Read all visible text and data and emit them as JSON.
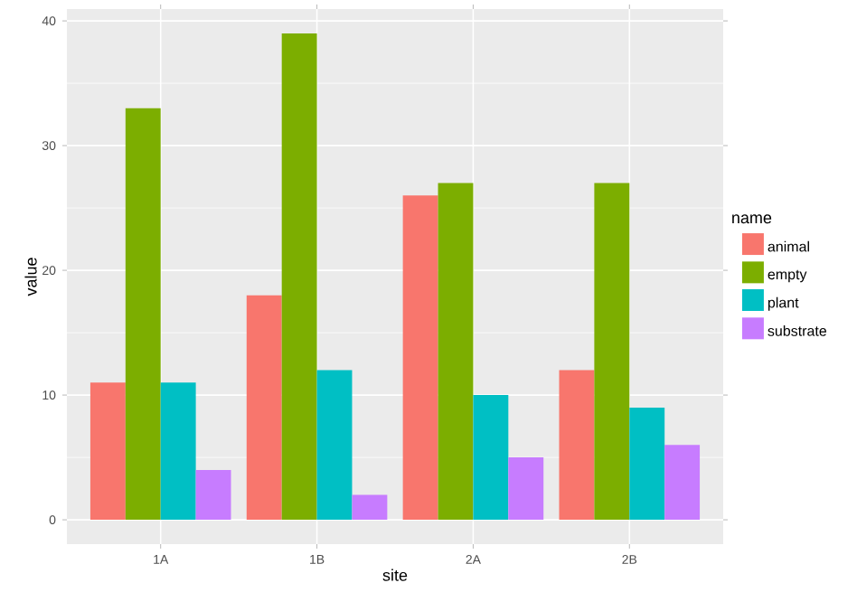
{
  "chart_data": {
    "type": "bar",
    "xlabel": "site",
    "ylabel": "value",
    "legend_title": "name",
    "categories": [
      "1A",
      "1B",
      "2A",
      "2B"
    ],
    "series": [
      {
        "name": "animal",
        "color": "#f8766d",
        "values": [
          11,
          18,
          26,
          12
        ]
      },
      {
        "name": "empty",
        "color": "#7cae00",
        "values": [
          33,
          39,
          27,
          27
        ]
      },
      {
        "name": "plant",
        "color": "#00bfc4",
        "values": [
          11,
          12,
          10,
          9
        ]
      },
      {
        "name": "substrate",
        "color": "#c77cff",
        "values": [
          4,
          2,
          5,
          6
        ]
      }
    ],
    "ylim": [
      -1.95,
      40.95
    ],
    "yticks": [
      0,
      10,
      20,
      30,
      40
    ],
    "grid": true,
    "legend": "right"
  }
}
